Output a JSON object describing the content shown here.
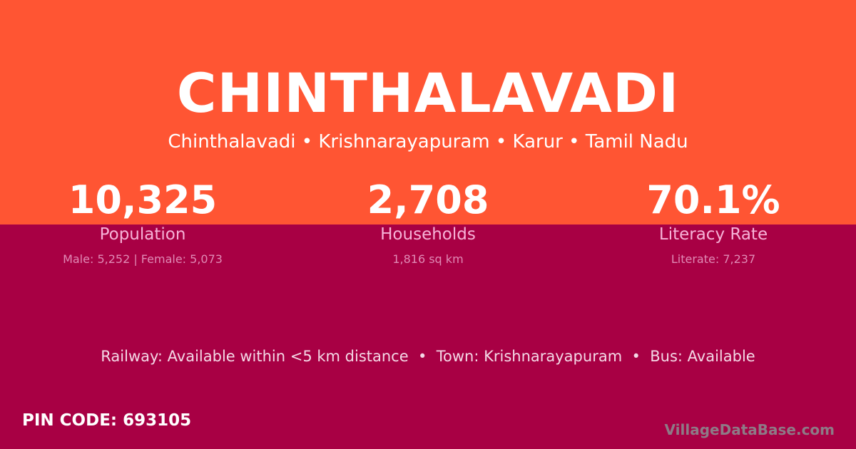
{
  "colors": {
    "top": "#FF5533",
    "bottom": "#A80044"
  },
  "title": "CHINTHALAVADI",
  "breadcrumb": "Chinthalavadi • Krishnarayapuram • Karur • Tamil Nadu",
  "stats": [
    {
      "value": "10,325",
      "label": "Population",
      "detail": "Male: 5,252 | Female: 5,073"
    },
    {
      "value": "2,708",
      "label": "Households",
      "detail": "1,816 sq km"
    },
    {
      "value": "70.1%",
      "label": "Literacy Rate",
      "detail": "Literate: 7,237"
    }
  ],
  "amenities": "Railway: Available within <5 km distance  •  Town: Krishnarayapuram  •  Bus: Available",
  "pin": "PIN CODE: 693105",
  "brand": "VillageDataBase.com"
}
